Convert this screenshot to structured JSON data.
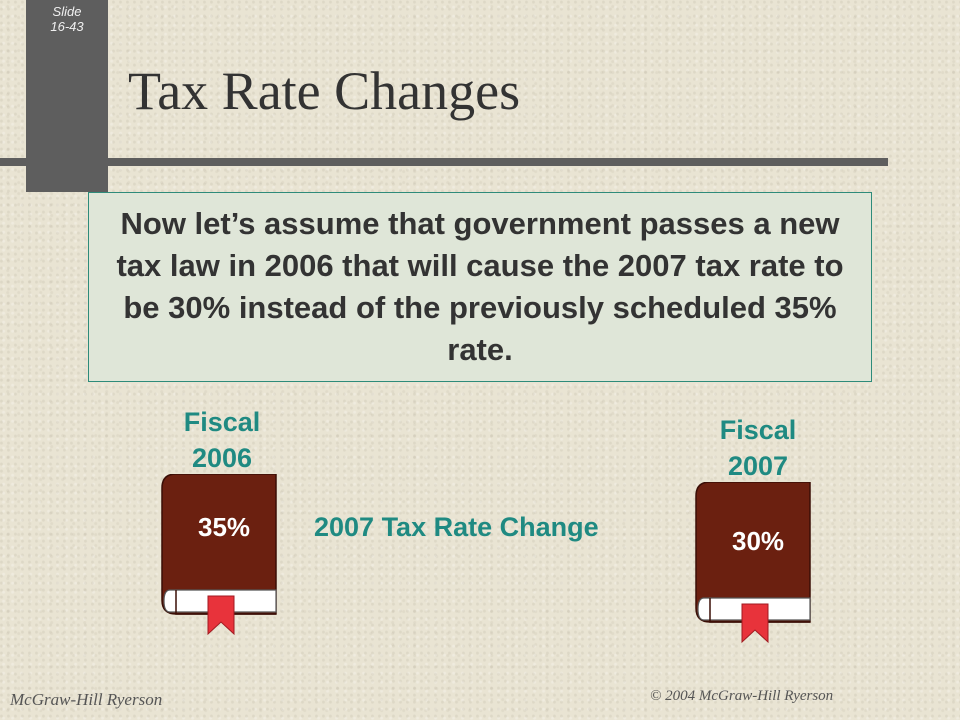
{
  "slide": {
    "label": "Slide",
    "number": "16-43"
  },
  "title": "Tax Rate Changes",
  "callout": "Now let’s assume that government passes a new tax law in 2006 that will cause the 2007 tax rate to be 30% instead of the previously scheduled 35% rate.",
  "books": [
    {
      "fiscal_line1": "Fiscal",
      "fiscal_line2": "2006",
      "rate": "35%"
    },
    {
      "fiscal_line1": "Fiscal",
      "fiscal_line2": "2007",
      "rate": "30%"
    }
  ],
  "change_label": "2007 Tax Rate Change",
  "footer": {
    "left": "McGraw-Hill Ryerson",
    "right": "© 2004 McGraw-Hill Ryerson"
  },
  "colors": {
    "background": "#e9e4d3",
    "sidebar": "#5e5e5e",
    "accent_teal": "#1f8a82",
    "book_cover": "#6b2010",
    "bookmark": "#e8333b",
    "callout_border": "#2e8b7a",
    "callout_fill": "#dfe6d8"
  }
}
